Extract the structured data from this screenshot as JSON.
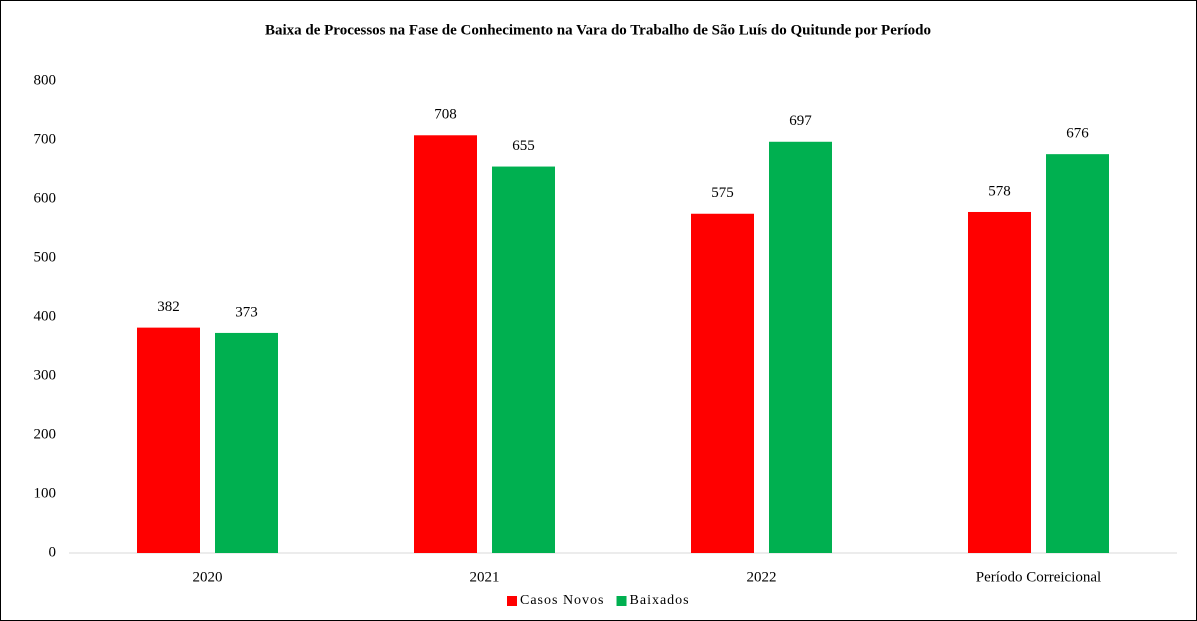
{
  "chart_data": {
    "type": "bar",
    "title": "Baixa de Processos na Fase de Conhecimento na Vara do Trabalho de São Luís do Quitunde por Período",
    "categories": [
      "2020",
      "2021",
      "2022",
      "Período Correicional"
    ],
    "series": [
      {
        "name": "Casos Novos",
        "color": "#ff0000",
        "values": [
          382,
          708,
          575,
          578
        ]
      },
      {
        "name": "Baixados",
        "color": "#00b050",
        "values": [
          373,
          655,
          697,
          676
        ]
      }
    ],
    "ylim": [
      0,
      800
    ],
    "yticks": [
      0,
      100,
      200,
      300,
      400,
      500,
      600,
      700,
      800
    ],
    "grid": false,
    "legend": "bottom"
  }
}
